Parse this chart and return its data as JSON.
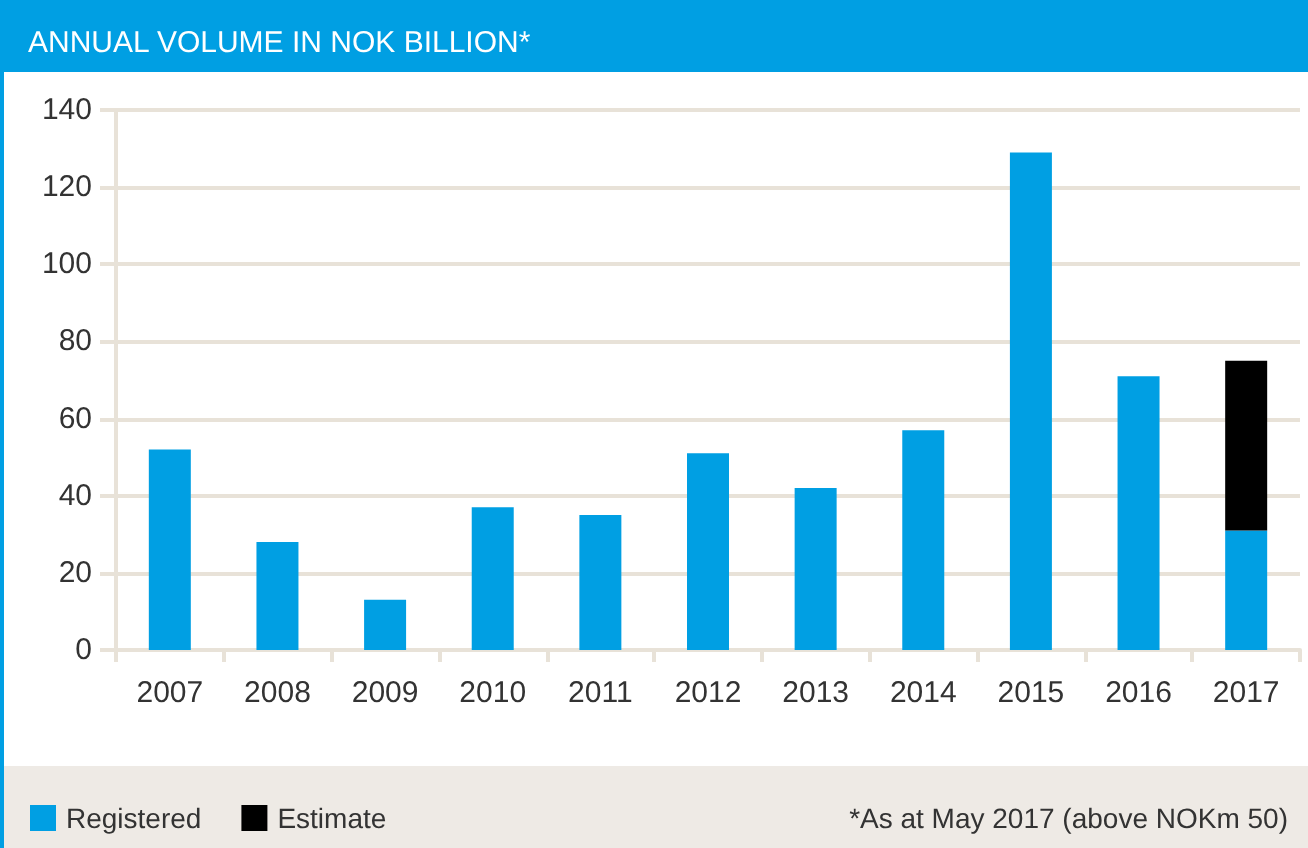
{
  "chart_data": {
    "type": "bar",
    "title": "ANNUAL VOLUME IN NOK BILLION*",
    "categories": [
      "2007",
      "2008",
      "2009",
      "2010",
      "2011",
      "2012",
      "2013",
      "2014",
      "2015",
      "2016",
      "2017"
    ],
    "series": [
      {
        "name": "Registered",
        "color": "#009fe3",
        "values": [
          52,
          28,
          13,
          37,
          35,
          51,
          42,
          57,
          129,
          71,
          31
        ]
      },
      {
        "name": "Estimate",
        "color": "#000000",
        "values": [
          null,
          null,
          null,
          null,
          null,
          null,
          null,
          null,
          null,
          null,
          44
        ]
      }
    ],
    "stacked": true,
    "ylim": [
      0,
      140
    ],
    "yticks": [
      0,
      20,
      40,
      60,
      80,
      100,
      120,
      140
    ],
    "grid": "y",
    "legend": "bottom left",
    "annotations": [
      "*As at May 2017 (above NOKm 50)"
    ]
  }
}
